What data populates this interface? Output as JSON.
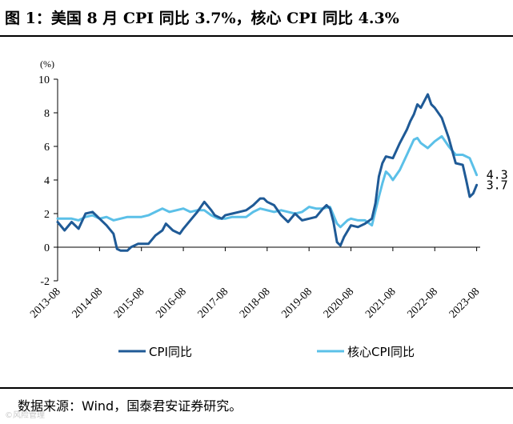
{
  "title": "图 1：美国 8 月 CPI 同比 3.7%，核心 CPI 同比 4.3%",
  "source": "数据来源：Wind，国泰君安证券研究。",
  "watermark": "©风险管理",
  "chart_data": {
    "type": "line",
    "unit": "(%)",
    "ylim": [
      -2,
      10
    ],
    "yticks": [
      -2,
      0,
      2,
      4,
      6,
      8,
      10
    ],
    "xlim": [
      2013.583,
      2023.667
    ],
    "xticks": [
      {
        "label": "2013-08",
        "x": 2013.583
      },
      {
        "label": "2014-08",
        "x": 2014.583
      },
      {
        "label": "2015-08",
        "x": 2015.583
      },
      {
        "label": "2016-08",
        "x": 2016.583
      },
      {
        "label": "2017-08",
        "x": 2017.583
      },
      {
        "label": "2018-08",
        "x": 2018.583
      },
      {
        "label": "2019-08",
        "x": 2019.583
      },
      {
        "label": "2020-08",
        "x": 2020.583
      },
      {
        "label": "2021-08",
        "x": 2021.583
      },
      {
        "label": "2022-08",
        "x": 2022.583
      },
      {
        "label": "2023-08",
        "x": 2023.583
      }
    ],
    "grid": false,
    "legend_position": "bottom",
    "series": [
      {
        "name": "CPI同比",
        "color": "#1f5a96",
        "end_label": "3.7",
        "points": [
          [
            2013.583,
            1.5
          ],
          [
            2013.75,
            1.0
          ],
          [
            2013.917,
            1.5
          ],
          [
            2014.083,
            1.1
          ],
          [
            2014.25,
            2.0
          ],
          [
            2014.417,
            2.1
          ],
          [
            2014.583,
            1.7
          ],
          [
            2014.75,
            1.3
          ],
          [
            2014.917,
            0.8
          ],
          [
            2015.0,
            -0.1
          ],
          [
            2015.083,
            -0.2
          ],
          [
            2015.25,
            -0.2
          ],
          [
            2015.333,
            0.0
          ],
          [
            2015.5,
            0.2
          ],
          [
            2015.583,
            0.2
          ],
          [
            2015.75,
            0.2
          ],
          [
            2015.917,
            0.7
          ],
          [
            2016.083,
            1.0
          ],
          [
            2016.167,
            1.4
          ],
          [
            2016.333,
            1.0
          ],
          [
            2016.5,
            0.8
          ],
          [
            2016.583,
            1.1
          ],
          [
            2016.75,
            1.6
          ],
          [
            2016.917,
            2.1
          ],
          [
            2017.083,
            2.7
          ],
          [
            2017.25,
            2.2
          ],
          [
            2017.333,
            1.9
          ],
          [
            2017.5,
            1.7
          ],
          [
            2017.583,
            1.9
          ],
          [
            2017.75,
            2.0
          ],
          [
            2017.917,
            2.1
          ],
          [
            2018.083,
            2.2
          ],
          [
            2018.25,
            2.5
          ],
          [
            2018.417,
            2.9
          ],
          [
            2018.5,
            2.9
          ],
          [
            2018.583,
            2.7
          ],
          [
            2018.75,
            2.5
          ],
          [
            2018.917,
            1.9
          ],
          [
            2019.083,
            1.5
          ],
          [
            2019.25,
            2.0
          ],
          [
            2019.417,
            1.6
          ],
          [
            2019.583,
            1.7
          ],
          [
            2019.75,
            1.8
          ],
          [
            2019.917,
            2.3
          ],
          [
            2020.0,
            2.5
          ],
          [
            2020.083,
            2.3
          ],
          [
            2020.167,
            1.5
          ],
          [
            2020.25,
            0.3
          ],
          [
            2020.333,
            0.1
          ],
          [
            2020.417,
            0.6
          ],
          [
            2020.583,
            1.3
          ],
          [
            2020.75,
            1.2
          ],
          [
            2020.917,
            1.4
          ],
          [
            2021.083,
            1.7
          ],
          [
            2021.167,
            2.6
          ],
          [
            2021.25,
            4.2
          ],
          [
            2021.333,
            5.0
          ],
          [
            2021.417,
            5.4
          ],
          [
            2021.583,
            5.3
          ],
          [
            2021.75,
            6.2
          ],
          [
            2021.917,
            7.0
          ],
          [
            2022.0,
            7.5
          ],
          [
            2022.083,
            7.9
          ],
          [
            2022.167,
            8.5
          ],
          [
            2022.25,
            8.3
          ],
          [
            2022.417,
            9.1
          ],
          [
            2022.5,
            8.5
          ],
          [
            2022.583,
            8.3
          ],
          [
            2022.75,
            7.7
          ],
          [
            2022.917,
            6.5
          ],
          [
            2023.083,
            5.0
          ],
          [
            2023.25,
            4.9
          ],
          [
            2023.333,
            4.0
          ],
          [
            2023.417,
            3.0
          ],
          [
            2023.5,
            3.2
          ],
          [
            2023.583,
            3.7
          ]
        ]
      },
      {
        "name": "核心CPI同比",
        "color": "#5bc0e8",
        "end_label": "4.3",
        "points": [
          [
            2013.583,
            1.7
          ],
          [
            2013.75,
            1.7
          ],
          [
            2013.917,
            1.7
          ],
          [
            2014.083,
            1.6
          ],
          [
            2014.25,
            1.8
          ],
          [
            2014.417,
            1.9
          ],
          [
            2014.583,
            1.7
          ],
          [
            2014.75,
            1.8
          ],
          [
            2014.917,
            1.6
          ],
          [
            2015.083,
            1.7
          ],
          [
            2015.25,
            1.8
          ],
          [
            2015.417,
            1.8
          ],
          [
            2015.583,
            1.8
          ],
          [
            2015.75,
            1.9
          ],
          [
            2015.917,
            2.1
          ],
          [
            2016.083,
            2.3
          ],
          [
            2016.25,
            2.1
          ],
          [
            2016.417,
            2.2
          ],
          [
            2016.583,
            2.3
          ],
          [
            2016.75,
            2.1
          ],
          [
            2016.917,
            2.2
          ],
          [
            2017.083,
            2.2
          ],
          [
            2017.25,
            1.9
          ],
          [
            2017.417,
            1.7
          ],
          [
            2017.583,
            1.7
          ],
          [
            2017.75,
            1.8
          ],
          [
            2017.917,
            1.8
          ],
          [
            2018.083,
            1.8
          ],
          [
            2018.25,
            2.1
          ],
          [
            2018.417,
            2.3
          ],
          [
            2018.583,
            2.2
          ],
          [
            2018.75,
            2.1
          ],
          [
            2018.917,
            2.2
          ],
          [
            2019.083,
            2.1
          ],
          [
            2019.25,
            2.0
          ],
          [
            2019.417,
            2.1
          ],
          [
            2019.583,
            2.4
          ],
          [
            2019.75,
            2.3
          ],
          [
            2019.917,
            2.3
          ],
          [
            2020.083,
            2.4
          ],
          [
            2020.25,
            1.4
          ],
          [
            2020.333,
            1.2
          ],
          [
            2020.5,
            1.6
          ],
          [
            2020.583,
            1.7
          ],
          [
            2020.75,
            1.6
          ],
          [
            2020.917,
            1.6
          ],
          [
            2021.083,
            1.3
          ],
          [
            2021.25,
            3.0
          ],
          [
            2021.333,
            3.8
          ],
          [
            2021.417,
            4.5
          ],
          [
            2021.5,
            4.3
          ],
          [
            2021.583,
            4.0
          ],
          [
            2021.75,
            4.6
          ],
          [
            2021.917,
            5.5
          ],
          [
            2022.083,
            6.4
          ],
          [
            2022.167,
            6.5
          ],
          [
            2022.25,
            6.2
          ],
          [
            2022.417,
            5.9
          ],
          [
            2022.583,
            6.3
          ],
          [
            2022.75,
            6.6
          ],
          [
            2022.917,
            6.0
          ],
          [
            2023.083,
            5.5
          ],
          [
            2023.25,
            5.5
          ],
          [
            2023.417,
            5.3
          ],
          [
            2023.5,
            4.8
          ],
          [
            2023.583,
            4.3
          ]
        ]
      }
    ]
  }
}
